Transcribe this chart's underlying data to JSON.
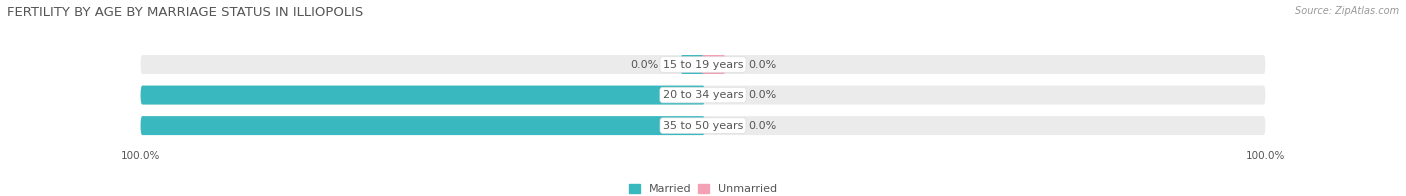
{
  "title": "FERTILITY BY AGE BY MARRIAGE STATUS IN ILLIOPOLIS",
  "source": "Source: ZipAtlas.com",
  "categories": [
    "15 to 19 years",
    "20 to 34 years",
    "35 to 50 years"
  ],
  "married_values": [
    0.0,
    100.0,
    100.0
  ],
  "unmarried_values": [
    0.0,
    0.0,
    0.0
  ],
  "married_color": "#3ab8c0",
  "unmarried_color": "#f4a0b5",
  "bar_bg_color": "#ebebeb",
  "bar_height": 0.62,
  "title_fontsize": 9.5,
  "label_fontsize": 8.0,
  "tick_fontsize": 7.5,
  "background_color": "#ffffff",
  "legend_married": "Married",
  "legend_unmarried": "Unmarried",
  "value_color": "#555555",
  "cat_label_color": "#555555",
  "title_color": "#555555",
  "source_color": "#999999"
}
